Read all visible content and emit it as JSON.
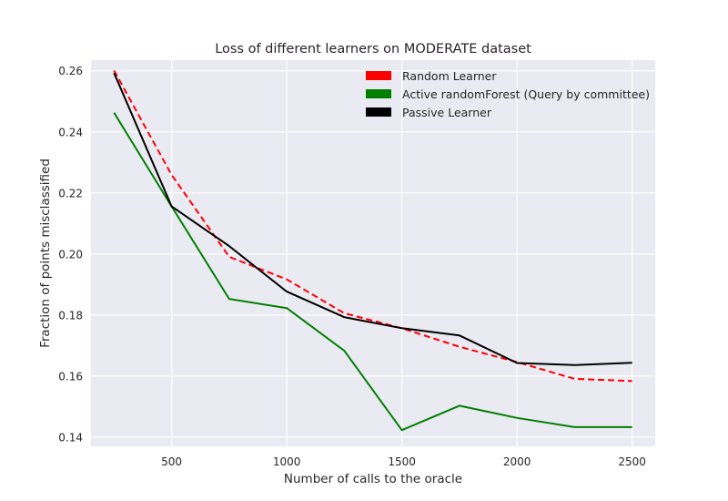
{
  "chart_data": {
    "type": "line",
    "title": "Loss of different learners on MODERATE dataset",
    "xlabel": "Number of calls to the oracle",
    "ylabel": "Fraction of points misclassified",
    "xlim": [
      150,
      2600
    ],
    "ylim": [
      0.137,
      0.2635
    ],
    "xticks": [
      500,
      1000,
      1500,
      2000,
      2500
    ],
    "yticks": [
      0.14,
      0.16,
      0.18,
      0.2,
      0.22,
      0.24,
      0.26
    ],
    "xtick_labels": [
      "500",
      "1000",
      "1500",
      "2000",
      "2500"
    ],
    "ytick_labels": [
      "0.14",
      "0.16",
      "0.18",
      "0.20",
      "0.22",
      "0.24",
      "0.26"
    ],
    "grid": true,
    "legend_position": "top-right",
    "x": [
      250,
      500,
      750,
      1000,
      1250,
      1500,
      1750,
      2000,
      2250,
      2500
    ],
    "series": [
      {
        "name": "Random Learner",
        "color": "#ff0000",
        "style": "dashed",
        "values": [
          0.2601,
          0.2259,
          0.1991,
          0.1917,
          0.1806,
          0.1757,
          0.1696,
          0.1646,
          0.1591,
          0.1584
        ]
      },
      {
        "name": "Active randomForest (Query by committee)",
        "color": "#008000",
        "style": "solid",
        "values": [
          0.2463,
          0.2156,
          0.1853,
          0.1823,
          0.1683,
          0.1423,
          0.1503,
          0.1463,
          0.1433,
          0.1433
        ]
      },
      {
        "name": "Passive Learner",
        "color": "#000000",
        "style": "solid",
        "values": [
          0.2593,
          0.2156,
          0.2026,
          0.1877,
          0.1793,
          0.1757,
          0.1733,
          0.1643,
          0.1636,
          0.1644
        ]
      }
    ]
  }
}
